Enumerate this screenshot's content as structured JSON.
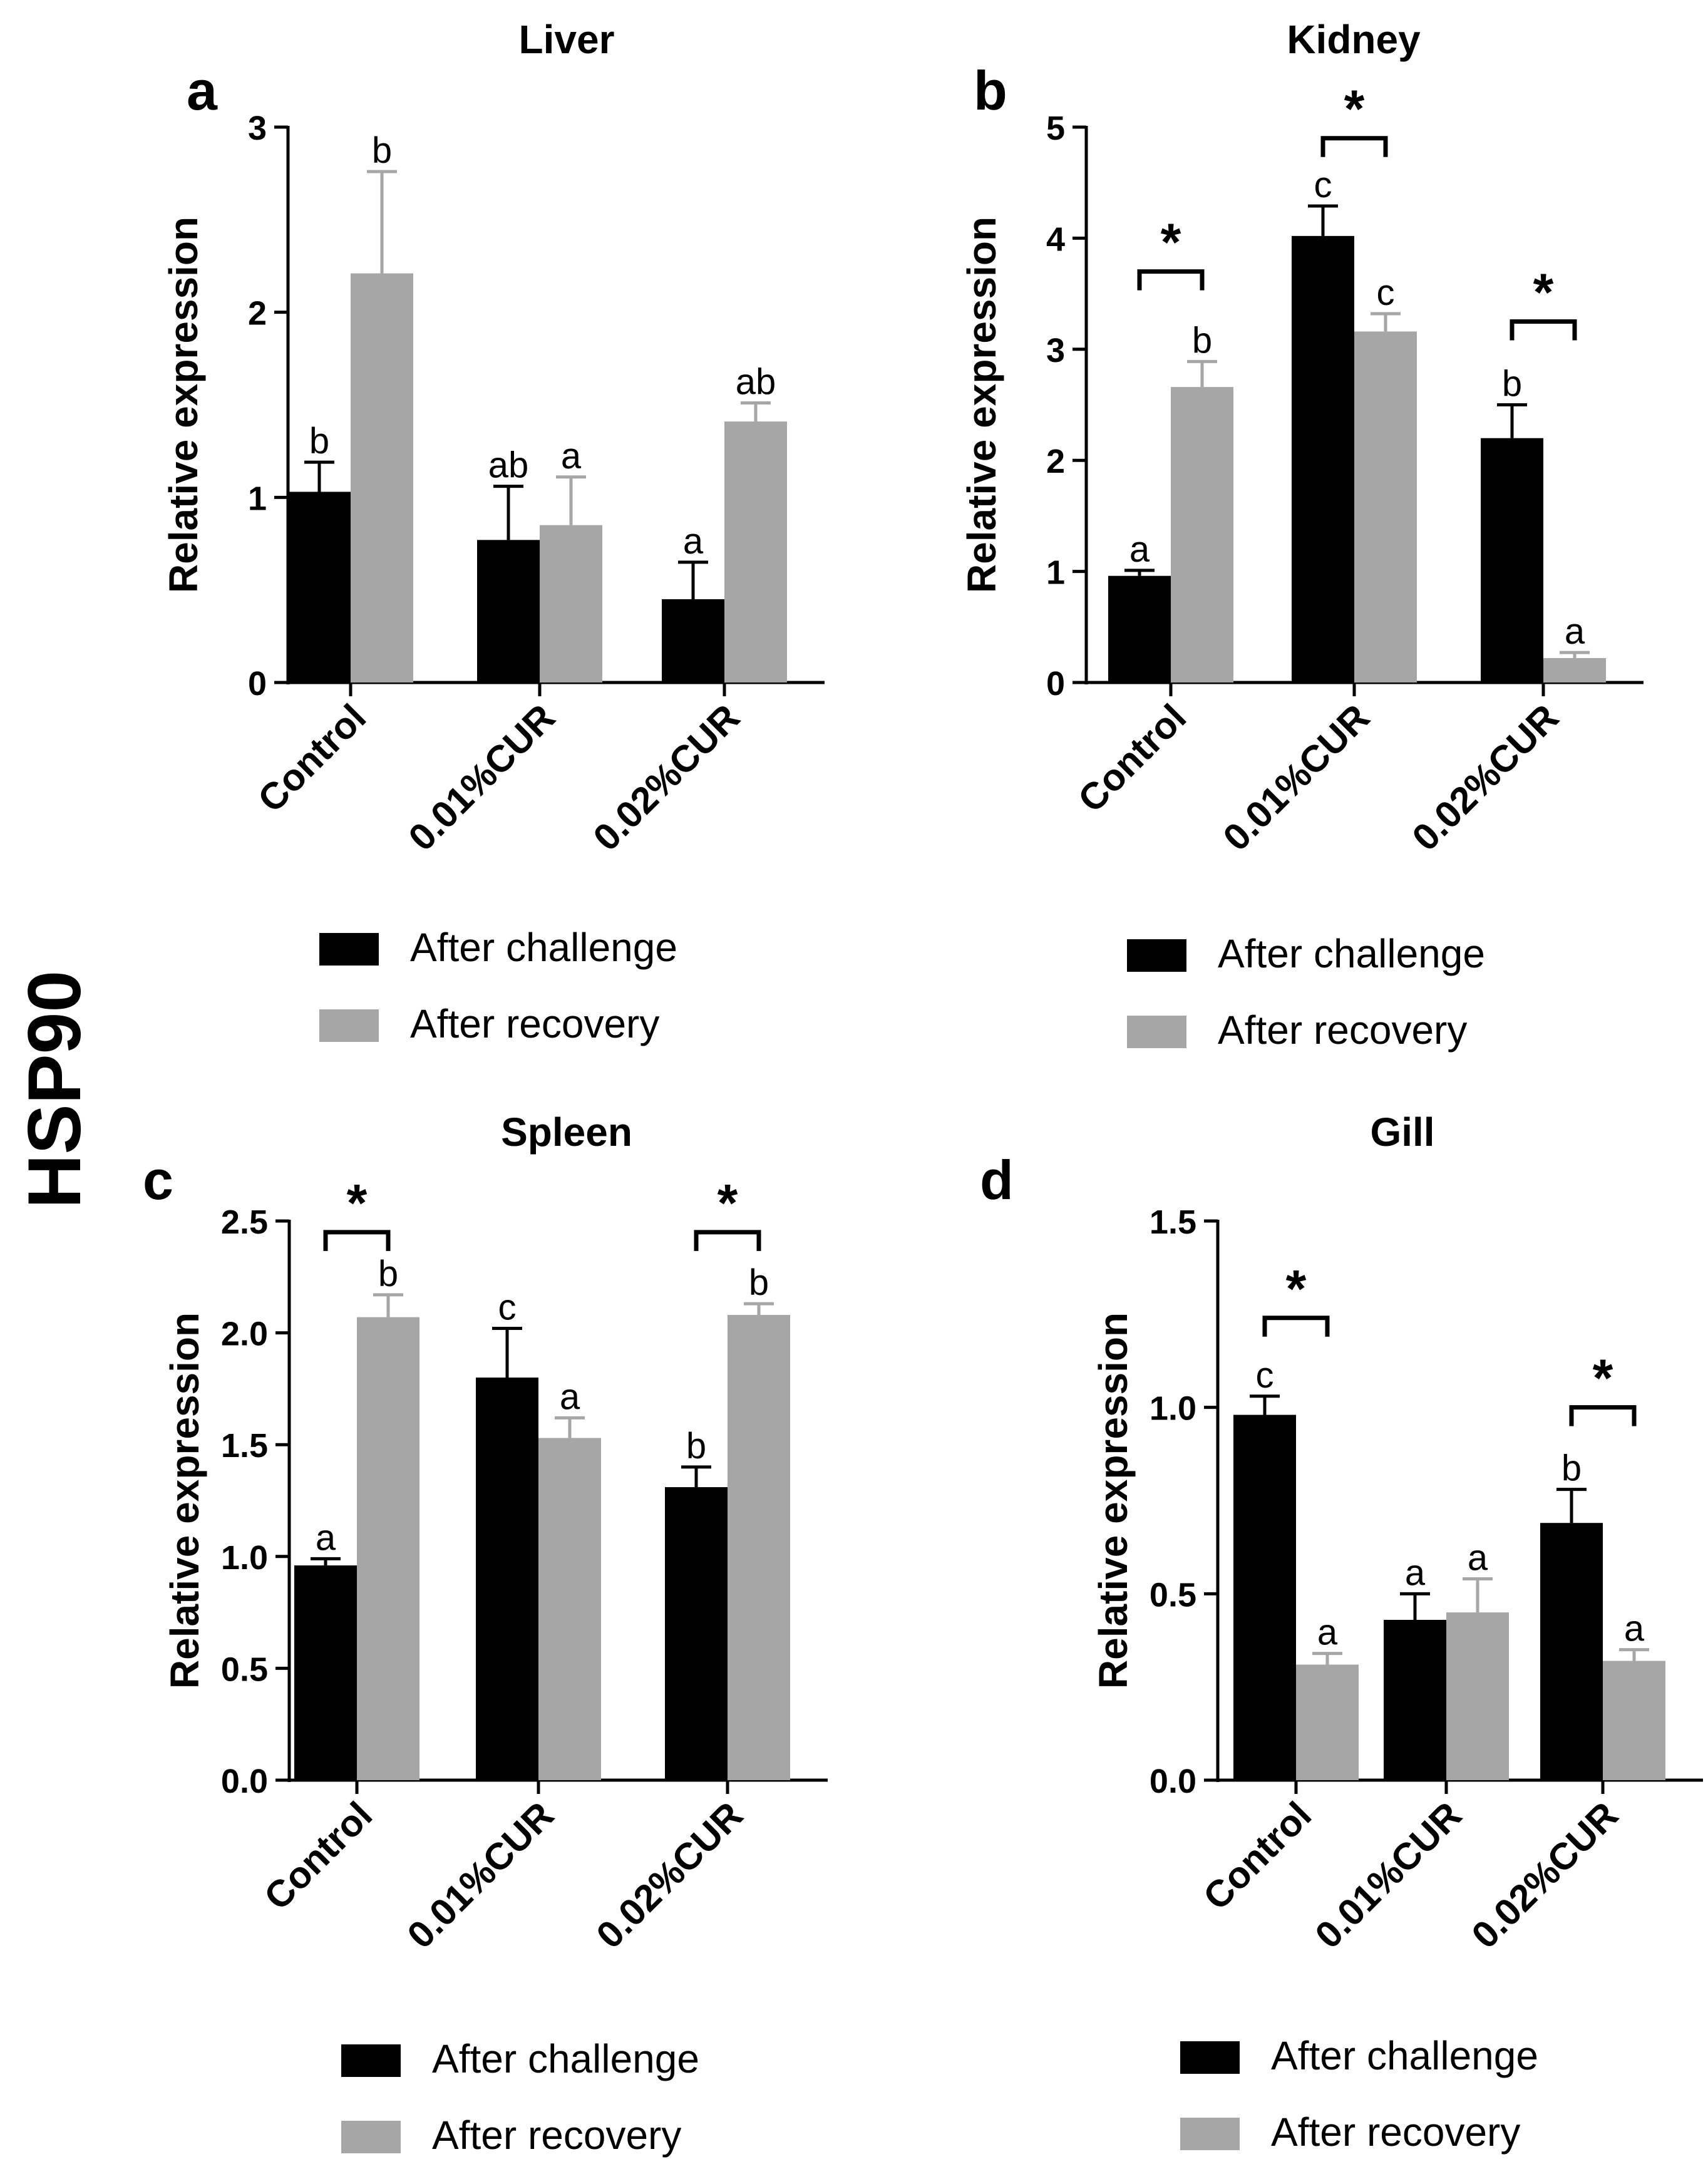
{
  "figure": {
    "side_label": "HSP90",
    "legend": {
      "series_a": "After challenge",
      "series_b": "After recovery"
    },
    "colors": {
      "series_a": "#000000",
      "series_b": "#a6a6a6",
      "axis": "#000000"
    }
  },
  "chart_data": [
    {
      "panel": "a",
      "type": "bar",
      "title": "Liver",
      "ylabel": "Relative expression",
      "xlabel": "",
      "categories": [
        "Control",
        "0.01%CUR",
        "0.02%CUR"
      ],
      "ylim": [
        0,
        3
      ],
      "yticks": [
        0,
        1,
        2,
        3
      ],
      "ytick_labels": [
        "0",
        "1",
        "2",
        "3"
      ],
      "series": [
        {
          "name": "After challenge",
          "values": [
            1.03,
            0.77,
            0.45
          ],
          "errors": [
            0.16,
            0.29,
            0.2
          ],
          "letters": [
            "b",
            "ab",
            "a"
          ]
        },
        {
          "name": "After recovery",
          "values": [
            2.21,
            0.85,
            1.41
          ],
          "errors": [
            0.55,
            0.26,
            0.1
          ],
          "letters": [
            "b",
            "a",
            "ab"
          ]
        }
      ],
      "significance": []
    },
    {
      "panel": "b",
      "type": "bar",
      "title": "Kidney",
      "ylabel": "Relative expression",
      "xlabel": "",
      "categories": [
        "Control",
        "0.01%CUR",
        "0.02%CUR"
      ],
      "ylim": [
        0,
        5
      ],
      "yticks": [
        0,
        1,
        2,
        3,
        4,
        5
      ],
      "ytick_labels": [
        "0",
        "1",
        "2",
        "3",
        "4",
        "5"
      ],
      "series": [
        {
          "name": "After challenge",
          "values": [
            0.96,
            4.02,
            2.2
          ],
          "errors": [
            0.05,
            0.27,
            0.3
          ],
          "letters": [
            "a",
            "c",
            "b"
          ]
        },
        {
          "name": "After recovery",
          "values": [
            2.66,
            3.16,
            0.22
          ],
          "errors": [
            0.23,
            0.16,
            0.05
          ],
          "letters": [
            "b",
            "c",
            "a"
          ]
        }
      ],
      "significance": [
        {
          "category": 0,
          "label": "*",
          "level": 3.7
        },
        {
          "category": 1,
          "label": "*",
          "level": 4.9
        },
        {
          "category": 2,
          "label": "*",
          "level": 3.25
        }
      ]
    },
    {
      "panel": "c",
      "type": "bar",
      "title": "Spleen",
      "ylabel": "Relative expression",
      "xlabel": "",
      "categories": [
        "Control",
        "0.01%CUR",
        "0.02%CUR"
      ],
      "ylim": [
        0,
        2.5
      ],
      "yticks": [
        0,
        0.5,
        1,
        1.5,
        2,
        2.5
      ],
      "ytick_labels": [
        "0.0",
        "0.5",
        "1.0",
        "1.5",
        "2.0",
        "2.5"
      ],
      "series": [
        {
          "name": "After challenge",
          "values": [
            0.96,
            1.8,
            1.31
          ],
          "errors": [
            0.03,
            0.22,
            0.09
          ],
          "letters": [
            "a",
            "c",
            "b"
          ]
        },
        {
          "name": "After recovery",
          "values": [
            2.07,
            1.53,
            2.08
          ],
          "errors": [
            0.1,
            0.09,
            0.05
          ],
          "letters": [
            "b",
            "a",
            "b"
          ]
        }
      ],
      "significance": [
        {
          "category": 0,
          "label": "*",
          "level": 2.45
        },
        {
          "category": 2,
          "label": "*",
          "level": 2.45
        }
      ]
    },
    {
      "panel": "d",
      "type": "bar",
      "title": "Gill",
      "ylabel": "Relative expression",
      "xlabel": "",
      "categories": [
        "Control",
        "0.01%CUR",
        "0.02%CUR"
      ],
      "ylim": [
        0,
        1.5
      ],
      "yticks": [
        0,
        0.5,
        1,
        1.5
      ],
      "ytick_labels": [
        "0.0",
        "0.5",
        "1.0",
        "1.5"
      ],
      "series": [
        {
          "name": "After challenge",
          "values": [
            0.98,
            0.43,
            0.69
          ],
          "errors": [
            0.05,
            0.07,
            0.09
          ],
          "letters": [
            "c",
            "a",
            "b"
          ]
        },
        {
          "name": "After recovery",
          "values": [
            0.31,
            0.45,
            0.32
          ],
          "errors": [
            0.03,
            0.09,
            0.03
          ],
          "letters": [
            "a",
            "a",
            "a"
          ]
        }
      ],
      "significance": [
        {
          "category": 0,
          "label": "*",
          "level": 1.24
        },
        {
          "category": 2,
          "label": "*",
          "level": 1.0
        }
      ]
    }
  ]
}
